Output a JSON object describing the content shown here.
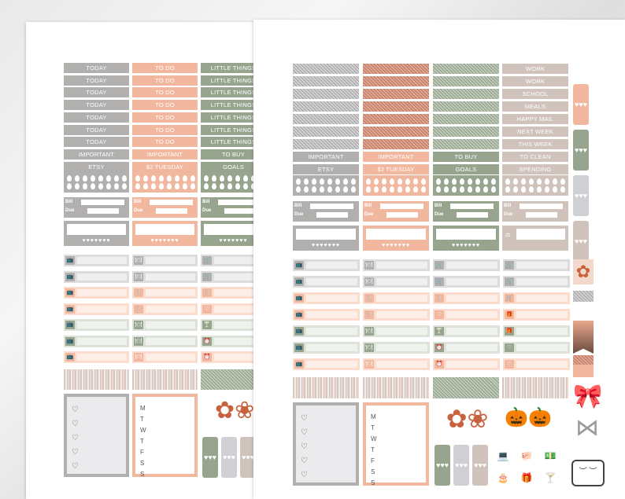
{
  "left_sheet": {
    "gray_labels": [
      "TODAY",
      "TODAY",
      "TODAY",
      "TODAY",
      "TODAY",
      "TODAY",
      "TODAY",
      "IMPORTANT",
      "ETSY"
    ],
    "peach_labels": [
      "TO DO",
      "TO DO",
      "TO DO",
      "TO DO",
      "TO DO",
      "TO DO",
      "TO DO",
      "IMPORTANT",
      "$2 TUESDAY"
    ],
    "sage_labels": [
      "LITTLE THINGS",
      "LITTLE THINGS",
      "LITTLE THINGS",
      "LITTLE THINGS",
      "LITTLE THINGS",
      "LITTLE THINGS",
      "LITTLE THINGS",
      "TO BUY",
      "GOALS"
    ],
    "bill_word": "Bill",
    "due_word": "Due",
    "dollar": "$",
    "weekdays": [
      "M",
      "T",
      "W",
      "T",
      "F",
      "S",
      "S"
    ]
  },
  "right_sheet": {
    "gray_labels": [
      "IMPORTANT",
      "ETSY"
    ],
    "peach_labels": [
      "IMPORTANT",
      "$2 TUESDAY"
    ],
    "sage_labels": [
      "TO BUY",
      "GOALS"
    ],
    "taupe_labels": [
      "WORK",
      "WORK",
      "SCHOOL",
      "MEALS",
      "HAPPY MAIL",
      "NEXT WEEK",
      "THIS WEEK",
      "TO CLEAN",
      "SPENDING"
    ],
    "bill_word": "Bill",
    "due_word": "Due",
    "dollar": "$",
    "weekdays": [
      "M",
      "T",
      "W",
      "T",
      "F",
      "S",
      "S"
    ]
  },
  "icons": [
    "tv-icon",
    "plate-icon",
    "cart-icon",
    "heart-icon",
    "flower-icon",
    "pumpkin-icon",
    "bow-icon",
    "laptop-icon",
    "piggy-bank-icon",
    "money-icon",
    "cake-icon",
    "gift-icon",
    "cocktail-icon",
    "sleep-mask-icon"
  ]
}
